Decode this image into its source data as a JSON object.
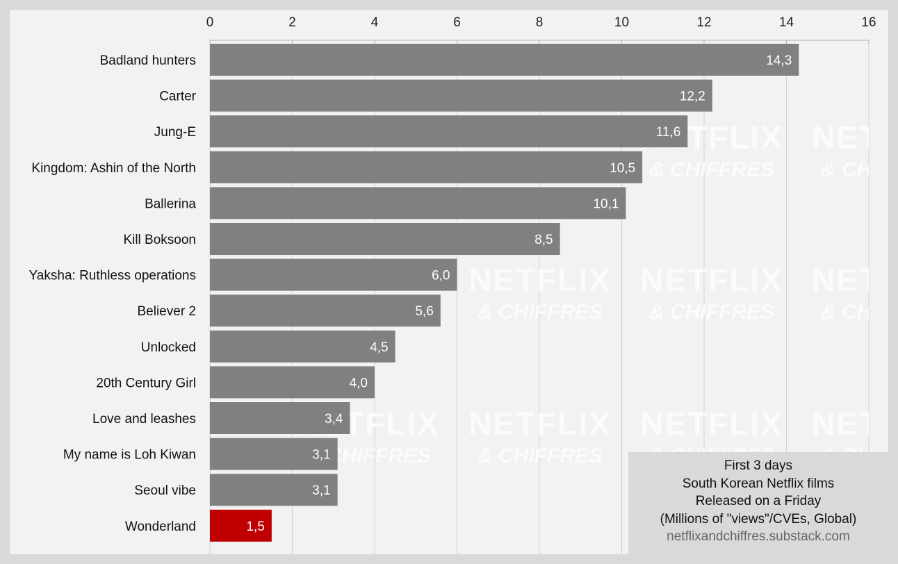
{
  "chart_data": {
    "type": "bar",
    "orientation": "horizontal",
    "categories": [
      "Badland hunters",
      "Carter",
      "Jung-E",
      "Kingdom: Ashin of the North",
      "Ballerina",
      "Kill Boksoon",
      "Yaksha: Ruthless operations",
      "Believer 2",
      "Unlocked",
      "20th Century Girl",
      "Love and leashes",
      "My name is Loh Kiwan",
      "Seoul vibe",
      "Wonderland"
    ],
    "values": [
      14.3,
      12.2,
      11.6,
      10.5,
      10.1,
      8.5,
      6.0,
      5.6,
      4.5,
      4.0,
      3.4,
      3.1,
      3.1,
      1.5
    ],
    "value_labels": [
      "14,3",
      "12,2",
      "11,6",
      "10,5",
      "10,1",
      "8,5",
      "6,0",
      "5,6",
      "4,5",
      "4,0",
      "3,4",
      "3,1",
      "3,1",
      "1,5"
    ],
    "highlight": "Wonderland",
    "xlim": [
      0,
      16
    ],
    "xticks": [
      0,
      2,
      4,
      6,
      8,
      10,
      12,
      14,
      16
    ],
    "x_axis_position": "top",
    "grid": true,
    "colors": {
      "bar": "#808080",
      "highlight": "#c00000",
      "background": "#f2f2f2",
      "frame": "#d9d9d9",
      "grid": "#d0d0d0"
    },
    "legend_lines": [
      "First 3 days",
      "South Korean Netflix films",
      "Released on a Friday",
      "(Millions of \"views\"/CVEs, Global)"
    ],
    "source": "netflixandchiffres.substack.com",
    "legend_placement": "bottom-right"
  },
  "watermark": {
    "line1": "NETFLIX",
    "line2": "& CHIFFRES"
  }
}
